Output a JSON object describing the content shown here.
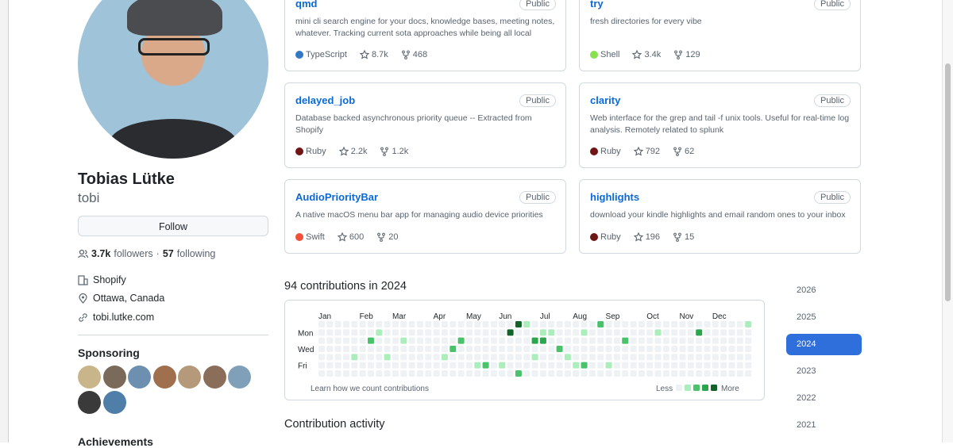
{
  "profile": {
    "name": "Tobias Lütke",
    "username": "tobi",
    "follow_button": "Follow",
    "followers_count": "3.7k",
    "followers_label": "followers",
    "separator": "·",
    "following_count": "57",
    "following_label": "following",
    "company": "Shopify",
    "location": "Ottawa, Canada",
    "website": "tobi.lutke.com",
    "sponsoring_title": "Sponsoring",
    "achievements_title": "Achievements"
  },
  "repos": [
    {
      "name": "qmd",
      "visibility": "Public",
      "description": "mini cli search engine for your docs, knowledge bases, meeting notes, whatever. Tracking current sota approaches while being all local",
      "language": "TypeScript",
      "language_color": "#3178c6",
      "stars": "8.7k",
      "forks": "468"
    },
    {
      "name": "try",
      "visibility": "Public",
      "description": "fresh directories for every vibe",
      "language": "Shell",
      "language_color": "#89e051",
      "stars": "3.4k",
      "forks": "129"
    },
    {
      "name": "delayed_job",
      "visibility": "Public",
      "description": "Database backed asynchronous priority queue -- Extracted from Shopify",
      "language": "Ruby",
      "language_color": "#701516",
      "stars": "2.2k",
      "forks": "1.2k"
    },
    {
      "name": "clarity",
      "visibility": "Public",
      "description": "Web interface for the grep and tail -f unix tools. Useful for real-time log analysis. Remotely related to splunk",
      "language": "Ruby",
      "language_color": "#701516",
      "stars": "792",
      "forks": "62"
    },
    {
      "name": "AudioPriorityBar",
      "visibility": "Public",
      "description": "A native macOS menu bar app for managing audio device priorities",
      "language": "Swift",
      "language_color": "#F05138",
      "stars": "600",
      "forks": "20"
    },
    {
      "name": "highlights",
      "visibility": "Public",
      "description": "download your kindle highlights and email random ones to your inbox",
      "language": "Ruby",
      "language_color": "#701516",
      "stars": "196",
      "forks": "15"
    }
  ],
  "contributions": {
    "title": "94 contributions in 2024",
    "months": [
      "Jan",
      "Feb",
      "Mar",
      "Apr",
      "May",
      "Jun",
      "Jul",
      "Aug",
      "Sep",
      "Oct",
      "Nov",
      "Dec"
    ],
    "day_labels": [
      null,
      "Mon",
      null,
      "Wed",
      null,
      "Fri",
      null
    ],
    "level_colors": [
      "#eff2f5",
      "#aceebb",
      "#4ac26b",
      "#2da44e",
      "#116329"
    ],
    "levels": [
      [
        0,
        0,
        0,
        0,
        0,
        0,
        0,
        0,
        0,
        0,
        0,
        0,
        0,
        0,
        0,
        0,
        0,
        0,
        0,
        0,
        0,
        0,
        0,
        0,
        4,
        1,
        0,
        0,
        0,
        0,
        0,
        0,
        0,
        0,
        2,
        0,
        0,
        0,
        0,
        0,
        0,
        0,
        0,
        0,
        0,
        0,
        0,
        0,
        0,
        0,
        0,
        0,
        1
      ],
      [
        0,
        0,
        0,
        0,
        0,
        0,
        0,
        1,
        0,
        0,
        0,
        0,
        0,
        0,
        0,
        0,
        0,
        0,
        0,
        0,
        0,
        0,
        0,
        4,
        0,
        0,
        0,
        1,
        1,
        0,
        0,
        0,
        1,
        0,
        0,
        0,
        0,
        0,
        0,
        0,
        0,
        1,
        0,
        0,
        0,
        0,
        3,
        0,
        0,
        0,
        0,
        0,
        0
      ],
      [
        0,
        0,
        0,
        0,
        0,
        0,
        2,
        0,
        0,
        0,
        1,
        0,
        0,
        0,
        0,
        0,
        0,
        2,
        0,
        0,
        0,
        0,
        0,
        0,
        0,
        0,
        3,
        3,
        0,
        0,
        0,
        0,
        0,
        0,
        0,
        0,
        0,
        2,
        0,
        0,
        0,
        0,
        0,
        0,
        0,
        0,
        0,
        0,
        0,
        0,
        0,
        0,
        0
      ],
      [
        0,
        0,
        0,
        0,
        0,
        0,
        0,
        0,
        0,
        0,
        0,
        0,
        0,
        0,
        0,
        0,
        2,
        0,
        0,
        0,
        0,
        0,
        0,
        0,
        0,
        0,
        0,
        0,
        0,
        2,
        0,
        0,
        0,
        0,
        0,
        0,
        0,
        0,
        0,
        0,
        0,
        0,
        0,
        0,
        0,
        0,
        0,
        0,
        0,
        0,
        0,
        0,
        0
      ],
      [
        0,
        0,
        0,
        0,
        1,
        0,
        0,
        0,
        1,
        0,
        0,
        0,
        0,
        0,
        0,
        1,
        0,
        0,
        0,
        0,
        0,
        0,
        0,
        0,
        0,
        0,
        1,
        0,
        0,
        0,
        1,
        0,
        0,
        0,
        0,
        0,
        0,
        0,
        0,
        0,
        0,
        0,
        0,
        0,
        0,
        0,
        0,
        0,
        0,
        0,
        0,
        0,
        0
      ],
      [
        0,
        0,
        0,
        0,
        0,
        0,
        0,
        0,
        0,
        0,
        0,
        0,
        0,
        0,
        0,
        0,
        0,
        0,
        0,
        1,
        2,
        0,
        1,
        0,
        0,
        0,
        0,
        0,
        0,
        0,
        0,
        1,
        2,
        0,
        0,
        1,
        0,
        0,
        0,
        0,
        0,
        0,
        0,
        0,
        0,
        0,
        0,
        0,
        0,
        0,
        0,
        0,
        0
      ],
      [
        0,
        0,
        0,
        0,
        0,
        0,
        0,
        0,
        0,
        0,
        0,
        0,
        0,
        0,
        0,
        0,
        0,
        0,
        0,
        0,
        0,
        0,
        0,
        0,
        2,
        0,
        0,
        0,
        0,
        0,
        0,
        0,
        0,
        0,
        0,
        0,
        0,
        0,
        0,
        0,
        0,
        0,
        0,
        0,
        0,
        0,
        0,
        0,
        0,
        0,
        0,
        0,
        0
      ]
    ],
    "learn_link": "Learn how we count contributions",
    "less": "Less",
    "more": "More",
    "years": [
      "2026",
      "2025",
      "2024",
      "2023",
      "2022",
      "2021"
    ],
    "selected": 2,
    "activity_title": "Contribution activity"
  }
}
